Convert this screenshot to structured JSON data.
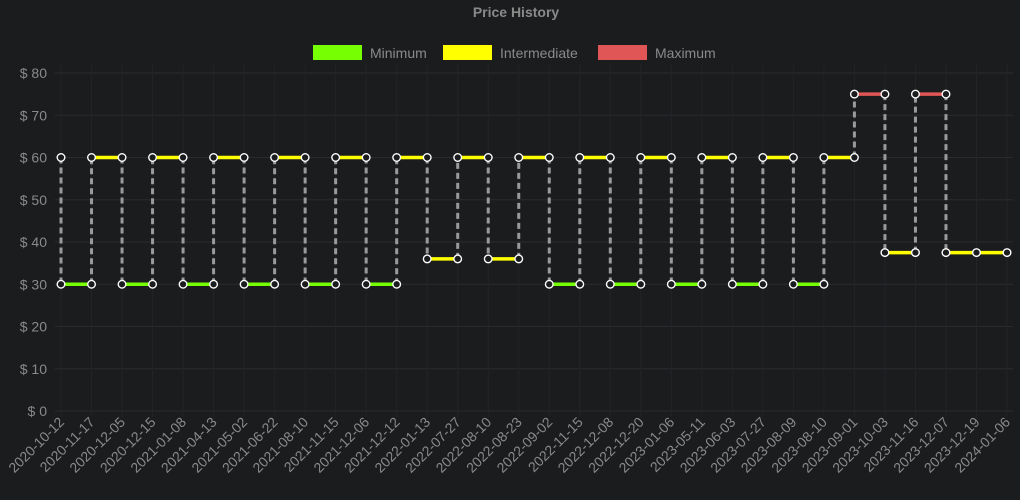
{
  "chart_data": {
    "type": "line",
    "title": "Price History",
    "y_prefix": "$ ",
    "ylim": [
      0,
      80
    ],
    "y_ticks": [
      0,
      10,
      20,
      30,
      40,
      50,
      60,
      70,
      80
    ],
    "y_tick_labels": [
      "$ 0",
      "$ 10",
      "$ 20",
      "$ 30",
      "$ 40",
      "$ 50",
      "$ 60",
      "$ 70",
      "$ 80"
    ],
    "grid": true,
    "legend_position": "top-center",
    "series": [
      {
        "name": "Minimum",
        "color": "#76ff03"
      },
      {
        "name": "Intermediate",
        "color": "#ffff00"
      },
      {
        "name": "Maximum",
        "color": "#e05555"
      }
    ],
    "x_labels": [
      "2020-10-12",
      "2020-11-17",
      "2020-12-05",
      "2020-12-15",
      "2021-01-08",
      "2021-04-13",
      "2021-05-02",
      "2021-06-22",
      "2021-08-10",
      "2021-11-15",
      "2021-12-06",
      "2021-12-12",
      "2022-01-13",
      "2022-07-27",
      "2022-08-10",
      "2022-08-23",
      "2022-09-02",
      "2022-11-15",
      "2022-12-08",
      "2022-12-20",
      "2023-01-06",
      "2023-05-11",
      "2023-06-03",
      "2023-07-27",
      "2023-08-09",
      "2023-08-10",
      "2023-09-01",
      "2023-10-03",
      "2023-11-16",
      "2023-12-07",
      "2023-12-19",
      "2024-01-06"
    ],
    "points": [
      {
        "x": "2020-10-12",
        "from": 60,
        "to": 30
      },
      {
        "x": "2020-11-17",
        "from": 30,
        "to": 60
      },
      {
        "x": "2020-12-05",
        "from": 60,
        "to": 30
      },
      {
        "x": "2020-12-15",
        "from": 30,
        "to": 60
      },
      {
        "x": "2021-01-08",
        "from": 60,
        "to": 30
      },
      {
        "x": "2021-04-13",
        "from": 30,
        "to": 60
      },
      {
        "x": "2021-05-02",
        "from": 60,
        "to": 30
      },
      {
        "x": "2021-06-22",
        "from": 30,
        "to": 60
      },
      {
        "x": "2021-08-10",
        "from": 60,
        "to": 30
      },
      {
        "x": "2021-11-15",
        "from": 30,
        "to": 60
      },
      {
        "x": "2021-12-06",
        "from": 60,
        "to": 30
      },
      {
        "x": "2021-12-12",
        "from": 30,
        "to": 60
      },
      {
        "x": "2022-01-13",
        "from": 60,
        "to": 36
      },
      {
        "x": "2022-07-27",
        "from": 36,
        "to": 60
      },
      {
        "x": "2022-08-10",
        "from": 60,
        "to": 36
      },
      {
        "x": "2022-08-23",
        "from": 36,
        "to": 60
      },
      {
        "x": "2022-09-02",
        "from": 60,
        "to": 30
      },
      {
        "x": "2022-11-15",
        "from": 30,
        "to": 60
      },
      {
        "x": "2022-12-08",
        "from": 60,
        "to": 30
      },
      {
        "x": "2022-12-20",
        "from": 30,
        "to": 60
      },
      {
        "x": "2023-01-06",
        "from": 60,
        "to": 30
      },
      {
        "x": "2023-05-11",
        "from": 30,
        "to": 60
      },
      {
        "x": "2023-06-03",
        "from": 60,
        "to": 30
      },
      {
        "x": "2023-07-27",
        "from": 30,
        "to": 60
      },
      {
        "x": "2023-08-09",
        "from": 60,
        "to": 30
      },
      {
        "x": "2023-08-10",
        "from": 30,
        "to": 60
      },
      {
        "x": "2023-09-01",
        "from": 60,
        "to": 75
      },
      {
        "x": "2023-10-03",
        "from": 75,
        "to": 37.5
      },
      {
        "x": "2023-11-16",
        "from": 37.5,
        "to": 75
      },
      {
        "x": "2023-12-07",
        "from": 75,
        "to": 37.5
      },
      {
        "x": "2023-12-19",
        "from": 37.5,
        "to": 37.5
      },
      {
        "x": "2024-01-06",
        "from": 37.5,
        "to": 37.5
      }
    ],
    "segments": [
      {
        "from": "2020-10-12",
        "to": "2020-11-17",
        "value": 30,
        "series": "Minimum"
      },
      {
        "from": "2020-11-17",
        "to": "2020-12-05",
        "value": 60,
        "series": "Intermediate"
      },
      {
        "from": "2020-12-05",
        "to": "2020-12-15",
        "value": 30,
        "series": "Minimum"
      },
      {
        "from": "2020-12-15",
        "to": "2021-01-08",
        "value": 60,
        "series": "Intermediate"
      },
      {
        "from": "2021-01-08",
        "to": "2021-04-13",
        "value": 30,
        "series": "Minimum"
      },
      {
        "from": "2021-04-13",
        "to": "2021-05-02",
        "value": 60,
        "series": "Intermediate"
      },
      {
        "from": "2021-05-02",
        "to": "2021-06-22",
        "value": 30,
        "series": "Minimum"
      },
      {
        "from": "2021-06-22",
        "to": "2021-08-10",
        "value": 60,
        "series": "Intermediate"
      },
      {
        "from": "2021-08-10",
        "to": "2021-11-15",
        "value": 30,
        "series": "Minimum"
      },
      {
        "from": "2021-11-15",
        "to": "2021-12-06",
        "value": 60,
        "series": "Intermediate"
      },
      {
        "from": "2021-12-06",
        "to": "2021-12-12",
        "value": 30,
        "series": "Minimum"
      },
      {
        "from": "2021-12-12",
        "to": "2022-01-13",
        "value": 60,
        "series": "Intermediate"
      },
      {
        "from": "2022-01-13",
        "to": "2022-07-27",
        "value": 36,
        "series": "Intermediate"
      },
      {
        "from": "2022-07-27",
        "to": "2022-08-10",
        "value": 60,
        "series": "Intermediate"
      },
      {
        "from": "2022-08-10",
        "to": "2022-08-23",
        "value": 36,
        "series": "Intermediate"
      },
      {
        "from": "2022-08-23",
        "to": "2022-09-02",
        "value": 60,
        "series": "Intermediate"
      },
      {
        "from": "2022-09-02",
        "to": "2022-11-15",
        "value": 30,
        "series": "Minimum"
      },
      {
        "from": "2022-11-15",
        "to": "2022-12-08",
        "value": 60,
        "series": "Intermediate"
      },
      {
        "from": "2022-12-08",
        "to": "2022-12-20",
        "value": 30,
        "series": "Minimum"
      },
      {
        "from": "2022-12-20",
        "to": "2023-01-06",
        "value": 60,
        "series": "Intermediate"
      },
      {
        "from": "2023-01-06",
        "to": "2023-05-11",
        "value": 30,
        "series": "Minimum"
      },
      {
        "from": "2023-05-11",
        "to": "2023-06-03",
        "value": 60,
        "series": "Intermediate"
      },
      {
        "from": "2023-06-03",
        "to": "2023-07-27",
        "value": 30,
        "series": "Minimum"
      },
      {
        "from": "2023-07-27",
        "to": "2023-08-09",
        "value": 60,
        "series": "Intermediate"
      },
      {
        "from": "2023-08-09",
        "to": "2023-08-10",
        "value": 30,
        "series": "Minimum"
      },
      {
        "from": "2023-08-10",
        "to": "2023-09-01",
        "value": 60,
        "series": "Intermediate"
      },
      {
        "from": "2023-09-01",
        "to": "2023-10-03",
        "value": 75,
        "series": "Maximum"
      },
      {
        "from": "2023-10-03",
        "to": "2023-11-16",
        "value": 37.5,
        "series": "Intermediate"
      },
      {
        "from": "2023-11-16",
        "to": "2023-12-07",
        "value": 75,
        "series": "Maximum"
      },
      {
        "from": "2023-12-07",
        "to": "2023-12-19",
        "value": 37.5,
        "series": "Intermediate"
      },
      {
        "from": "2023-12-19",
        "to": "2024-01-06",
        "value": 37.5,
        "series": "Intermediate"
      }
    ]
  }
}
